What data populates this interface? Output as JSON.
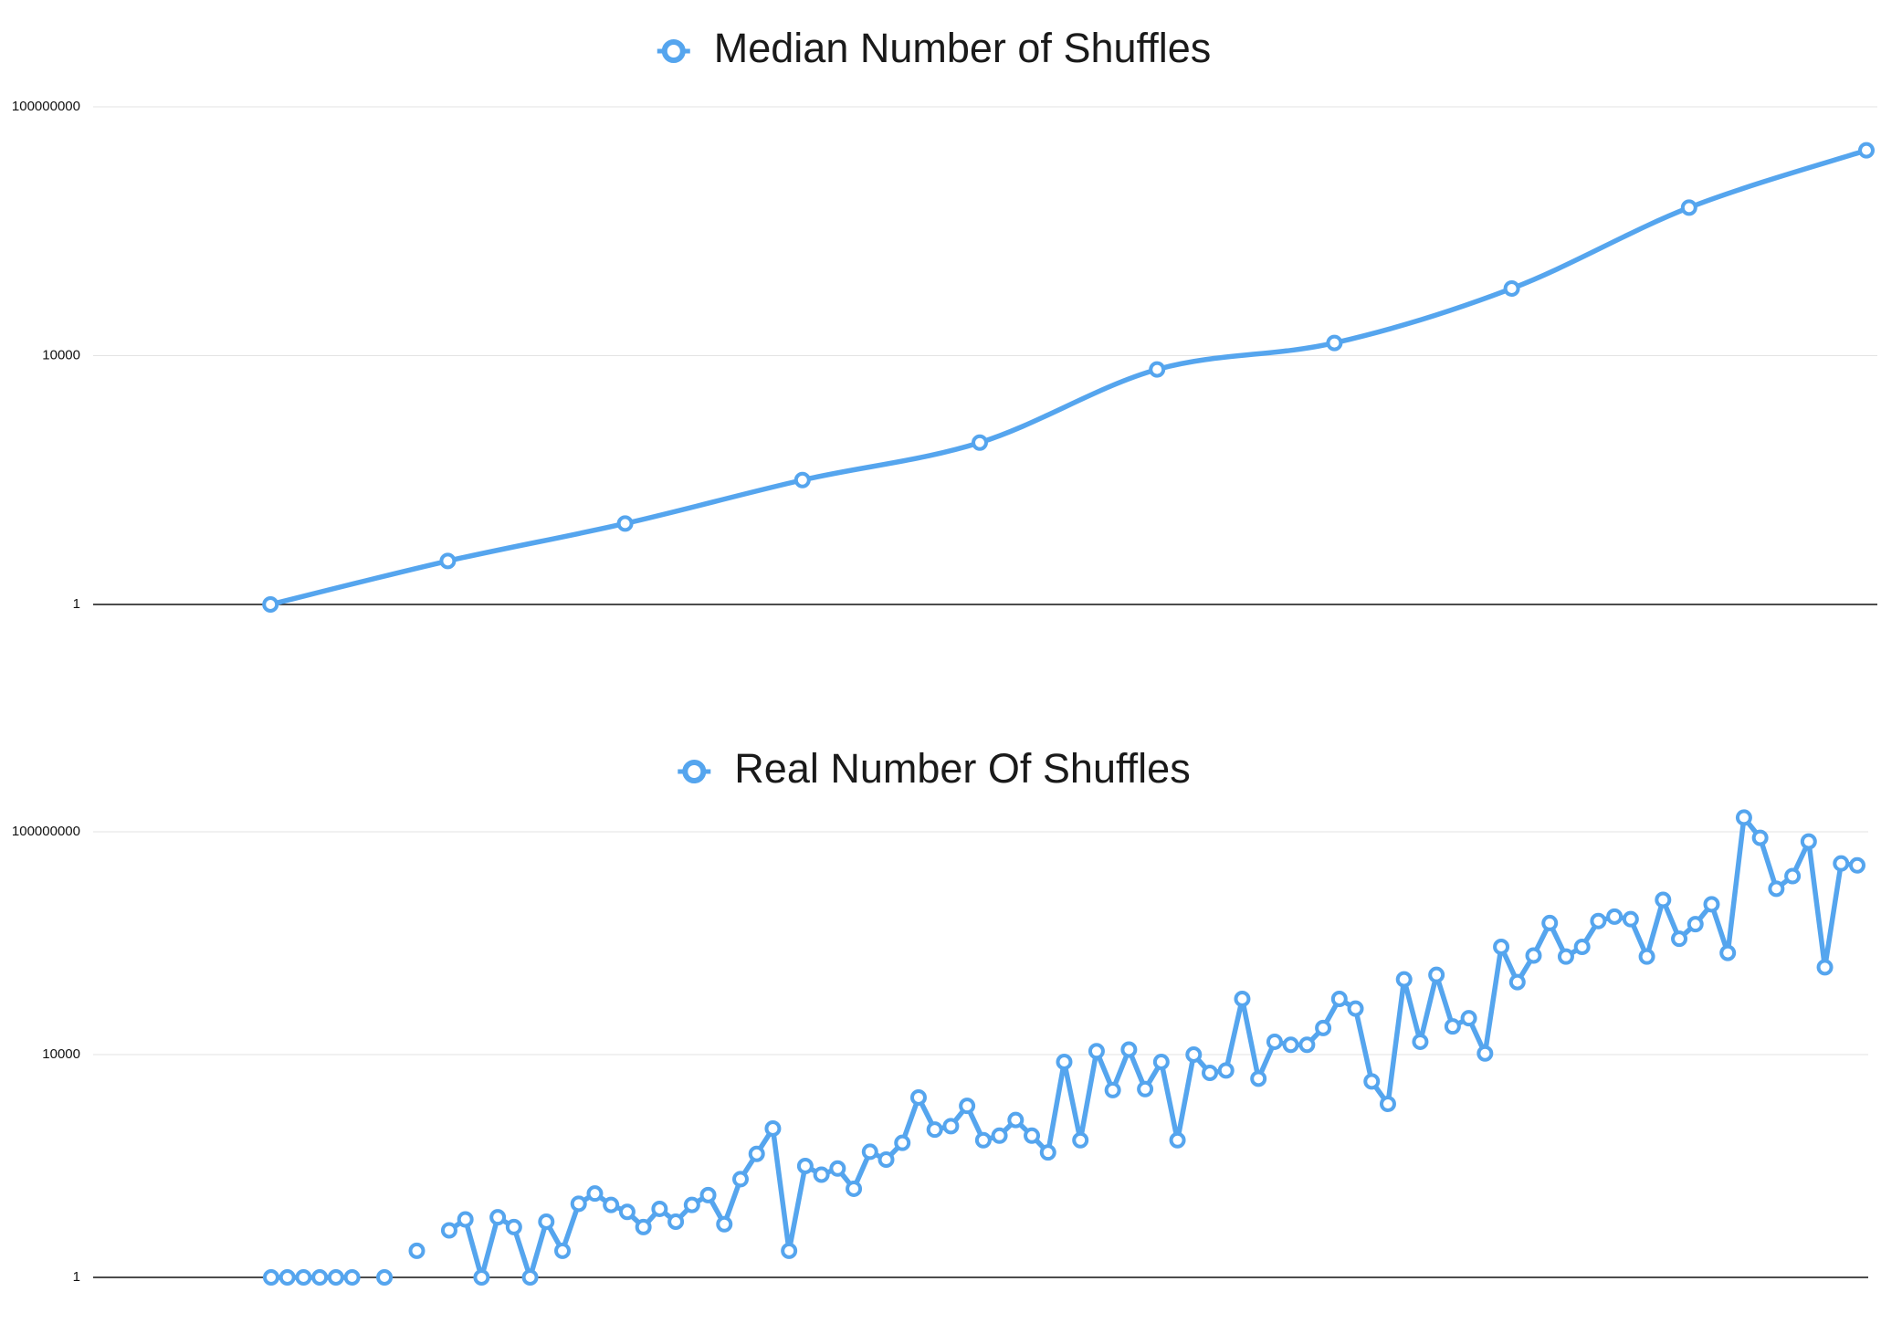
{
  "chart_data": [
    {
      "type": "line",
      "log_y": true,
      "smooth": true,
      "grid": true,
      "legend": "top",
      "ylim": [
        1,
        100000000
      ],
      "yticks": [
        1,
        10000,
        100000000
      ],
      "categories": [
        null,
        null,
        null,
        null,
        null,
        null,
        null,
        null,
        null,
        null,
        null
      ],
      "series": [
        {
          "name": "Median Number of Shuffles",
          "color": "#55a5ee",
          "values": [
            null,
            1,
            5,
            20,
            100,
            400,
            6000,
            16000,
            120000,
            2400000,
            20000000
          ]
        }
      ]
    },
    {
      "type": "line",
      "log_y": true,
      "smooth": false,
      "grid": true,
      "legend": "top",
      "ylim": [
        1,
        1000000000
      ],
      "yticks": [
        1,
        10000,
        100000000
      ],
      "categories": [
        null,
        null,
        null,
        null,
        null,
        null,
        null,
        null,
        null,
        null,
        null,
        null,
        null,
        null,
        null,
        null,
        null,
        null,
        null,
        null,
        null,
        null,
        null,
        null,
        null,
        null,
        null,
        null,
        null,
        null,
        null,
        null,
        null,
        null,
        null,
        null,
        null,
        null,
        null,
        null,
        null,
        null,
        null,
        null,
        null,
        null,
        null,
        null,
        null,
        null,
        null,
        null,
        null,
        null,
        null,
        null,
        null,
        null,
        null,
        null,
        null,
        null,
        null,
        null,
        null,
        null,
        null,
        null,
        null,
        null,
        null,
        null,
        null,
        null,
        null,
        null,
        null,
        null,
        null,
        null,
        null,
        null,
        null,
        null,
        null,
        null,
        null,
        null,
        null,
        null,
        null,
        null,
        null,
        null,
        null,
        null,
        null,
        null,
        null,
        null,
        null,
        null,
        null,
        null,
        null,
        null,
        null,
        null,
        null,
        null
      ],
      "series": [
        {
          "name": "Real Number Of Shuffles",
          "color": "#55a5ee",
          "values": [
            null,
            null,
            null,
            null,
            null,
            null,
            null,
            null,
            null,
            null,
            null,
            1,
            1,
            1,
            1,
            1,
            1,
            null,
            1,
            null,
            3,
            null,
            7,
            11,
            1,
            12,
            8,
            1,
            10,
            3,
            21,
            32,
            20,
            15,
            8,
            17,
            10,
            20,
            30,
            9,
            58,
            165,
            470,
            3,
            100,
            70,
            90,
            39,
            180,
            130,
            260,
            1700,
            450,
            520,
            1200,
            290,
            350,
            670,
            350,
            175,
            7400,
            290,
            11500,
            2300,
            12300,
            2400,
            7400,
            290,
            10000,
            4700,
            5200,
            100000,
            3700,
            17000,
            15000,
            15000,
            30000,
            100000,
            67000,
            3300,
            1300,
            224000,
            17000,
            270000,
            32000,
            45000,
            10500,
            860000,
            200000,
            600000,
            2300000,
            575000,
            860000,
            2500000,
            3000000,
            2700000,
            575000,
            6000000,
            1200000,
            2200000,
            5000000,
            670000,
            180000000,
            78000000,
            9500000,
            16000000,
            67000000,
            370000,
            27000000,
            25000000
          ]
        }
      ]
    }
  ]
}
